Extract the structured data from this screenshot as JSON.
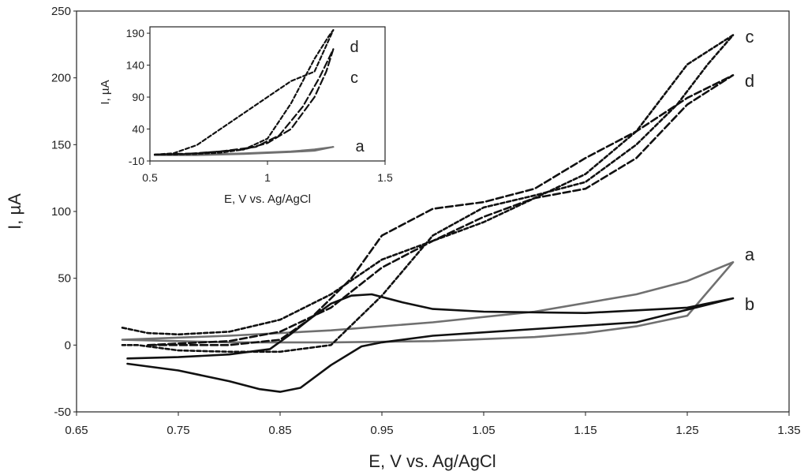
{
  "chart_data": {
    "type": "line",
    "title": "",
    "xlabel": "E, V vs. Ag/AgCl",
    "ylabel": "I, µA",
    "xlim": [
      0.65,
      1.35
    ],
    "ylim": [
      -50,
      250
    ],
    "x_ticks": [
      "0.65",
      "0.75",
      "0.85",
      "0.95",
      "1.05",
      "1.15",
      "1.25",
      "1.35"
    ],
    "y_ticks": [
      "-50",
      "0",
      "50",
      "100",
      "150",
      "200",
      "250"
    ],
    "series": [
      {
        "name": "a",
        "color": "#707070",
        "dash": "solid",
        "x": [
          0.695,
          0.8,
          0.9,
          1.0,
          1.1,
          1.15,
          1.2,
          1.25,
          1.295,
          1.25,
          1.2,
          1.1,
          1.0,
          0.9,
          0.8,
          0.695
        ],
        "y": [
          4,
          2,
          2,
          3,
          6,
          9,
          14,
          22,
          62,
          48,
          38,
          25,
          17,
          11,
          7,
          4
        ]
      },
      {
        "name": "b",
        "color": "#111111",
        "dash": "solid",
        "x": [
          0.7,
          0.75,
          0.8,
          0.83,
          0.85,
          0.87,
          0.9,
          0.93,
          0.95,
          1.0,
          1.1,
          1.2,
          1.295,
          1.25,
          1.15,
          1.05,
          1.0,
          0.97,
          0.94,
          0.92,
          0.9,
          0.88,
          0.86,
          0.84,
          0.8,
          0.75,
          0.7
        ],
        "y": [
          -14,
          -19,
          -27,
          -33,
          -35,
          -32,
          -15,
          -1,
          2,
          7,
          12,
          17,
          35,
          28,
          24,
          25,
          27,
          32,
          38,
          37,
          31,
          20,
          8,
          -3,
          -7,
          -9,
          -10
        ]
      },
      {
        "name": "c",
        "color": "#111111",
        "dash": "dense",
        "x": [
          0.695,
          0.72,
          0.75,
          0.8,
          0.85,
          0.9,
          0.95,
          1.0,
          1.05,
          1.1,
          1.15,
          1.2,
          1.25,
          1.295,
          1.27,
          1.24,
          1.2,
          1.15,
          1.1,
          1.05,
          1.0,
          0.95,
          0.9,
          0.85,
          0.8,
          0.75,
          0.71,
          0.695
        ],
        "y": [
          13,
          9,
          8,
          10,
          19,
          38,
          64,
          78,
          92,
          110,
          128,
          160,
          210,
          232,
          210,
          180,
          150,
          122,
          112,
          103,
          82,
          37,
          0,
          -5,
          -5,
          -4,
          0,
          0
        ]
      },
      {
        "name": "d",
        "color": "#111111",
        "dash": "long",
        "x": [
          0.72,
          0.8,
          0.85,
          0.9,
          0.95,
          1.0,
          1.05,
          1.1,
          1.15,
          1.2,
          1.25,
          1.295,
          1.25,
          1.2,
          1.15,
          1.1,
          1.05,
          1.0,
          0.95,
          0.92,
          0.88,
          0.85,
          0.8,
          0.75,
          0.72
        ],
        "y": [
          0,
          3,
          10,
          28,
          58,
          78,
          96,
          110,
          117,
          140,
          180,
          202,
          185,
          160,
          140,
          117,
          107,
          102,
          82,
          50,
          20,
          4,
          0,
          0,
          0
        ]
      }
    ],
    "inset": {
      "xlabel": "E, V vs. Ag/AgCl",
      "ylabel": "I, µA",
      "xlim": [
        0.5,
        1.5
      ],
      "ylim": [
        -10,
        200
      ],
      "x_ticks": [
        "0.5",
        "1",
        "1.5"
      ],
      "y_ticks": [
        "-10",
        "40",
        "90",
        "140",
        "190"
      ],
      "series": [
        {
          "name": "a",
          "color": "#707070",
          "dash": "solid",
          "x": [
            0.52,
            0.7,
            0.9,
            1.1,
            1.2,
            1.28,
            1.2,
            1.1,
            0.9,
            0.7,
            0.52
          ],
          "y": [
            -1,
            -1,
            1,
            4,
            6,
            12,
            8,
            5,
            2,
            0,
            -1
          ]
        },
        {
          "name": "c",
          "color": "#111111",
          "dash": "long",
          "x": [
            0.52,
            0.7,
            0.9,
            1.0,
            1.1,
            1.2,
            1.25,
            1.28,
            1.26,
            1.22,
            1.15,
            1.05,
            0.95,
            0.8,
            0.65,
            0.52
          ],
          "y": [
            0,
            2,
            8,
            18,
            40,
            90,
            130,
            165,
            150,
            120,
            75,
            30,
            12,
            5,
            1,
            0
          ]
        },
        {
          "name": "d",
          "color": "#111111",
          "dash": "dense",
          "x": [
            0.52,
            0.6,
            0.7,
            0.8,
            0.9,
            1.0,
            1.1,
            1.2,
            1.28,
            1.26,
            1.2,
            1.1,
            1.0,
            0.9,
            0.8,
            0.7,
            0.6,
            0.52
          ],
          "y": [
            0,
            2,
            15,
            40,
            65,
            90,
            115,
            130,
            195,
            185,
            150,
            80,
            25,
            8,
            3,
            1,
            0,
            0
          ]
        }
      ],
      "labels_order": [
        "d",
        "c",
        "a"
      ]
    }
  }
}
